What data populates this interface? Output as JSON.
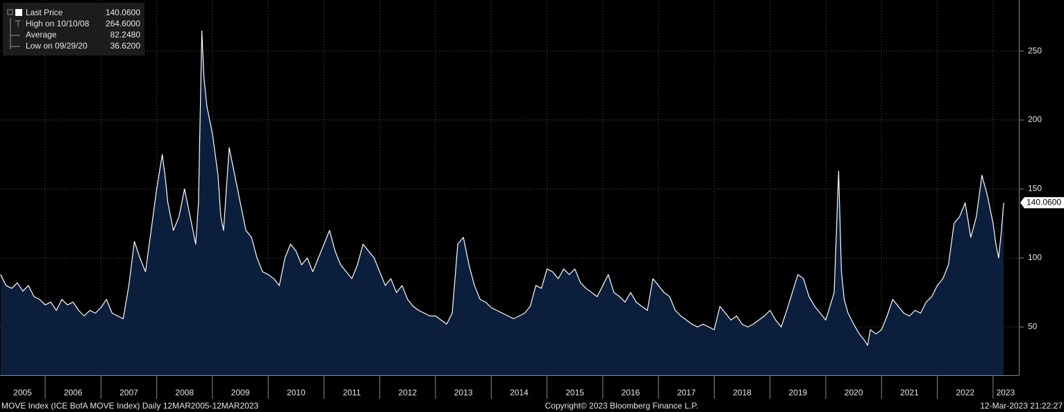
{
  "chart_data": {
    "type": "area",
    "footer_left": "MOVE Index (ICE BofA MOVE Index)  Daily 12MAR2005-12MAR2023",
    "footer_center": "Copyright© 2023 Bloomberg Finance L.P.",
    "footer_right": "12-Mar-2023 21:22:27",
    "legend": [
      {
        "label": "Last Price",
        "value": "140.0600"
      },
      {
        "label": "High on 10/10/08",
        "value": "264.6000"
      },
      {
        "label": "Average",
        "value": "82.2480"
      },
      {
        "label": "Low on 09/29/20",
        "value": "36.6200"
      }
    ],
    "last_price_tag": "140.0600",
    "xlim": [
      2005.19,
      2023.45
    ],
    "xticks": [
      2005,
      2006,
      2007,
      2008,
      2009,
      2010,
      2011,
      2012,
      2013,
      2014,
      2015,
      2016,
      2017,
      2018,
      2019,
      2020,
      2021,
      2022,
      2023
    ],
    "ylim": [
      15,
      287
    ],
    "yticks": [
      50,
      100,
      150,
      200,
      250
    ],
    "grid": true,
    "series": [
      {
        "name": "Last Price",
        "color": "#ffffff",
        "fill": "#0b1f3d",
        "x": [
          2005.2,
          2005.3,
          2005.4,
          2005.5,
          2005.6,
          2005.7,
          2005.8,
          2005.9,
          2006.0,
          2006.1,
          2006.2,
          2006.3,
          2006.4,
          2006.5,
          2006.6,
          2006.7,
          2006.8,
          2006.9,
          2007.0,
          2007.1,
          2007.2,
          2007.3,
          2007.4,
          2007.5,
          2007.6,
          2007.7,
          2007.8,
          2007.9,
          2008.0,
          2008.1,
          2008.15,
          2008.2,
          2008.3,
          2008.4,
          2008.5,
          2008.6,
          2008.7,
          2008.75,
          2008.81,
          2008.85,
          2008.9,
          2009.0,
          2009.1,
          2009.15,
          2009.2,
          2009.3,
          2009.4,
          2009.5,
          2009.6,
          2009.7,
          2009.8,
          2009.9,
          2010.0,
          2010.1,
          2010.2,
          2010.3,
          2010.4,
          2010.5,
          2010.6,
          2010.7,
          2010.8,
          2010.9,
          2011.0,
          2011.1,
          2011.2,
          2011.3,
          2011.4,
          2011.5,
          2011.6,
          2011.7,
          2011.8,
          2011.9,
          2012.0,
          2012.1,
          2012.2,
          2012.3,
          2012.4,
          2012.5,
          2012.6,
          2012.7,
          2012.8,
          2012.9,
          2013.0,
          2013.1,
          2013.2,
          2013.3,
          2013.4,
          2013.5,
          2013.6,
          2013.7,
          2013.8,
          2013.9,
          2014.0,
          2014.1,
          2014.2,
          2014.3,
          2014.4,
          2014.5,
          2014.6,
          2014.7,
          2014.8,
          2014.9,
          2015.0,
          2015.1,
          2015.2,
          2015.3,
          2015.4,
          2015.5,
          2015.6,
          2015.7,
          2015.8,
          2015.9,
          2016.0,
          2016.1,
          2016.2,
          2016.3,
          2016.4,
          2016.5,
          2016.6,
          2016.7,
          2016.8,
          2016.9,
          2017.0,
          2017.1,
          2017.2,
          2017.3,
          2017.4,
          2017.5,
          2017.6,
          2017.7,
          2017.8,
          2017.9,
          2018.0,
          2018.1,
          2018.2,
          2018.3,
          2018.4,
          2018.5,
          2018.6,
          2018.7,
          2018.8,
          2018.9,
          2019.0,
          2019.1,
          2019.2,
          2019.3,
          2019.4,
          2019.5,
          2019.6,
          2019.7,
          2019.8,
          2019.9,
          2020.0,
          2020.15,
          2020.23,
          2020.28,
          2020.33,
          2020.4,
          2020.5,
          2020.6,
          2020.7,
          2020.75,
          2020.8,
          2020.9,
          2021.0,
          2021.1,
          2021.2,
          2021.3,
          2021.4,
          2021.5,
          2021.6,
          2021.7,
          2021.8,
          2021.9,
          2022.0,
          2022.1,
          2022.2,
          2022.3,
          2022.4,
          2022.5,
          2022.6,
          2022.7,
          2022.8,
          2022.9,
          2023.0,
          2023.05,
          2023.1,
          2023.15,
          2023.19
        ],
        "values": [
          88,
          80,
          78,
          82,
          76,
          80,
          72,
          70,
          66,
          68,
          62,
          70,
          66,
          68,
          62,
          58,
          62,
          60,
          64,
          70,
          60,
          58,
          56,
          80,
          112,
          100,
          90,
          120,
          150,
          175,
          160,
          140,
          120,
          130,
          150,
          130,
          110,
          140,
          264.6,
          230,
          210,
          190,
          160,
          130,
          120,
          180,
          160,
          140,
          120,
          115,
          100,
          90,
          88,
          85,
          80,
          100,
          110,
          105,
          95,
          100,
          90,
          100,
          110,
          120,
          105,
          95,
          90,
          85,
          95,
          110,
          105,
          100,
          90,
          80,
          85,
          75,
          80,
          70,
          65,
          62,
          60,
          58,
          58,
          55,
          52,
          60,
          110,
          115,
          95,
          80,
          70,
          68,
          64,
          62,
          60,
          58,
          56,
          58,
          60,
          65,
          80,
          78,
          92,
          90,
          85,
          92,
          88,
          92,
          82,
          78,
          75,
          72,
          80,
          88,
          75,
          72,
          68,
          75,
          68,
          65,
          62,
          85,
          80,
          75,
          72,
          62,
          58,
          55,
          52,
          50,
          52,
          50,
          48,
          65,
          60,
          55,
          58,
          52,
          50,
          52,
          55,
          58,
          62,
          55,
          50,
          62,
          75,
          88,
          85,
          72,
          65,
          60,
          55,
          75,
          163,
          90,
          70,
          60,
          52,
          45,
          40,
          36.62,
          48,
          45,
          48,
          58,
          70,
          65,
          60,
          58,
          62,
          60,
          68,
          72,
          80,
          85,
          95,
          125,
          130,
          140,
          115,
          130,
          160,
          145,
          125,
          110,
          100,
          120,
          140.06
        ]
      }
    ]
  }
}
